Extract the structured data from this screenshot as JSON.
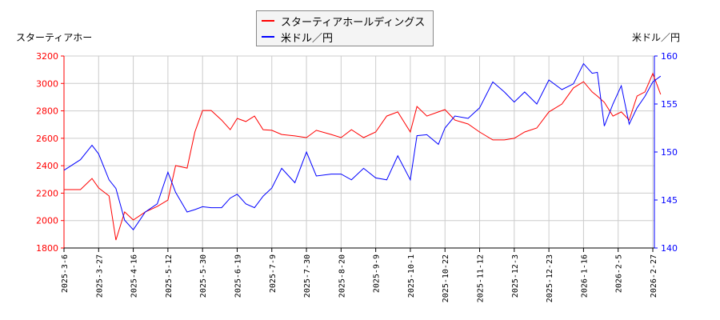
{
  "chart_data": {
    "type": "line",
    "title": "",
    "left_axis_label": "スターティアホー",
    "right_axis_label": "米ドル／円",
    "left_ylim": [
      1800,
      3200
    ],
    "left_ticks": [
      1800,
      2000,
      2200,
      2400,
      2600,
      2800,
      3000,
      3200
    ],
    "right_ylim": [
      140,
      160
    ],
    "right_ticks": [
      140,
      145,
      150,
      155,
      160
    ],
    "x_ticks": [
      "2025-3-6",
      "2025-3-27",
      "2025-4-16",
      "2025-5-12",
      "2025-5-30",
      "2025-6-19",
      "2025-7-9",
      "2025-7-30",
      "2025-8-20",
      "2025-9-9",
      "2025-10-1",
      "2025-10-22",
      "2025-11-12",
      "2025-12-3",
      "2025-12-23",
      "2026-1-16",
      "2026-2-5",
      "2026-2-27"
    ],
    "grid": true,
    "legend_placement": "top-center",
    "x": [
      "2025-03-06",
      "2025-03-16",
      "2025-03-23",
      "2025-03-27",
      "2025-04-02",
      "2025-04-06",
      "2025-04-11",
      "2025-04-16",
      "2025-04-25",
      "2025-05-04",
      "2025-05-12",
      "2025-05-16",
      "2025-05-22",
      "2025-05-26",
      "2025-05-30",
      "2025-06-04",
      "2025-06-10",
      "2025-06-15",
      "2025-06-19",
      "2025-06-24",
      "2025-06-29",
      "2025-07-04",
      "2025-07-09",
      "2025-07-15",
      "2025-07-23",
      "2025-07-30",
      "2025-08-05",
      "2025-08-14",
      "2025-08-20",
      "2025-08-26",
      "2025-09-02",
      "2025-09-09",
      "2025-09-16",
      "2025-09-23",
      "2025-10-01",
      "2025-10-05",
      "2025-10-11",
      "2025-10-18",
      "2025-10-22",
      "2025-10-28",
      "2025-11-05",
      "2025-11-12",
      "2025-11-20",
      "2025-11-27",
      "2025-12-03",
      "2025-12-09",
      "2025-12-16",
      "2025-12-23",
      "2026-01-01",
      "2026-01-09",
      "2026-01-16",
      "2026-01-21",
      "2026-01-24",
      "2026-01-28",
      "2026-02-02",
      "2026-02-07",
      "2026-02-12",
      "2026-02-17",
      "2026-02-22",
      "2026-02-27",
      "2026-03-04"
    ],
    "series": [
      {
        "name": "スターティアホールディングス",
        "axis": "left",
        "color": "#ff0000",
        "values": [
          2226,
          2226,
          2307,
          2238,
          2180,
          1858,
          2063,
          2004,
          2063,
          2103,
          2150,
          2401,
          2383,
          2646,
          2803,
          2803,
          2733,
          2663,
          2745,
          2722,
          2762,
          2663,
          2658,
          2628,
          2617,
          2605,
          2658,
          2628,
          2605,
          2663,
          2605,
          2646,
          2762,
          2792,
          2646,
          2832,
          2762,
          2792,
          2809,
          2733,
          2704,
          2646,
          2588,
          2588,
          2600,
          2646,
          2675,
          2792,
          2850,
          2967,
          3013,
          2938,
          2908,
          2862,
          2762,
          2792,
          2733,
          2908,
          2938,
          3072,
          2920
        ]
      },
      {
        "name": "米ドル／円",
        "axis": "right",
        "color": "#0000ff",
        "values": [
          148.1,
          149.2,
          150.7,
          149.8,
          147.1,
          146.2,
          142.9,
          141.9,
          143.75,
          144.6,
          147.9,
          145.8,
          143.75,
          144.0,
          144.3,
          144.2,
          144.2,
          145.2,
          145.6,
          144.6,
          144.2,
          145.4,
          146.25,
          148.3,
          146.8,
          150.0,
          147.5,
          147.7,
          147.7,
          147.1,
          148.3,
          147.3,
          147.1,
          149.6,
          147.1,
          151.7,
          151.8,
          150.8,
          152.5,
          153.75,
          153.5,
          154.6,
          157.3,
          156.25,
          155.2,
          156.25,
          155.0,
          157.5,
          156.5,
          157.1,
          159.2,
          158.2,
          158.3,
          152.7,
          155.0,
          156.9,
          152.9,
          154.6,
          155.8,
          157.3,
          157.9
        ]
      }
    ]
  }
}
